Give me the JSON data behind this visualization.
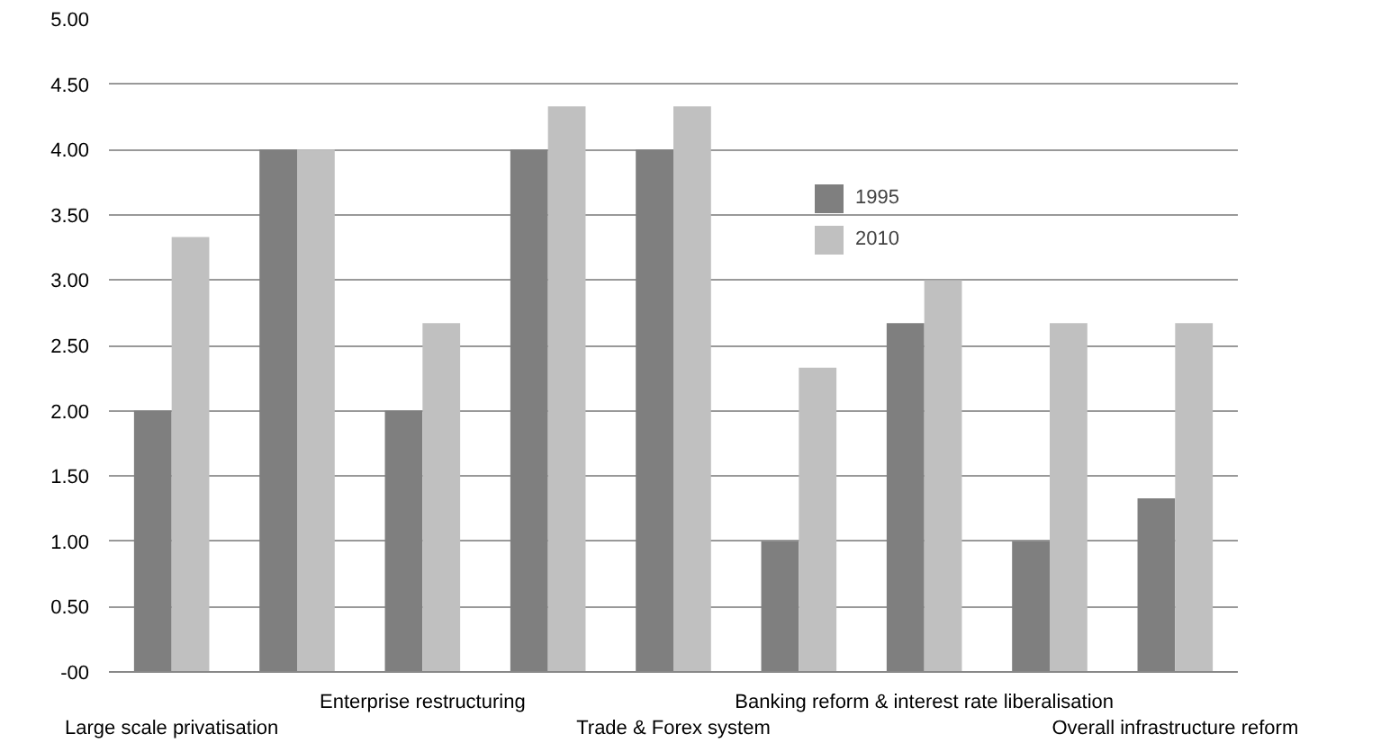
{
  "chart_data": {
    "type": "bar",
    "categories": [
      "Large scale privatisation",
      null,
      "Enterprise restructuring",
      null,
      "Trade & Forex system",
      null,
      "Banking reform & interest rate liberalisation",
      null,
      "Overall infrastructure reform"
    ],
    "series": [
      {
        "name": "1995",
        "color": "#7f7f7f",
        "values": [
          2.0,
          4.0,
          2.0,
          4.0,
          4.0,
          1.0,
          2.67,
          1.0,
          1.33
        ]
      },
      {
        "name": "2010",
        "color": "#c0c0c0",
        "values": [
          3.33,
          4.0,
          2.67,
          4.33,
          4.33,
          2.33,
          3.0,
          2.67,
          2.67
        ]
      }
    ],
    "ylim": [
      0,
      5
    ],
    "yticks": [
      {
        "value": 0,
        "label": "-00"
      },
      {
        "value": 0.5,
        "label": "0.50"
      },
      {
        "value": 1,
        "label": "1.00"
      },
      {
        "value": 1.5,
        "label": "1.50"
      },
      {
        "value": 2,
        "label": "2.00"
      },
      {
        "value": 2.5,
        "label": "2.50"
      },
      {
        "value": 3,
        "label": "3.00"
      },
      {
        "value": 3.5,
        "label": "3.50"
      },
      {
        "value": 4,
        "label": "4.00"
      },
      {
        "value": 4.5,
        "label": "4.50"
      },
      {
        "value": 5,
        "label": "5.00"
      }
    ],
    "grid": "y",
    "legend": "top right"
  }
}
